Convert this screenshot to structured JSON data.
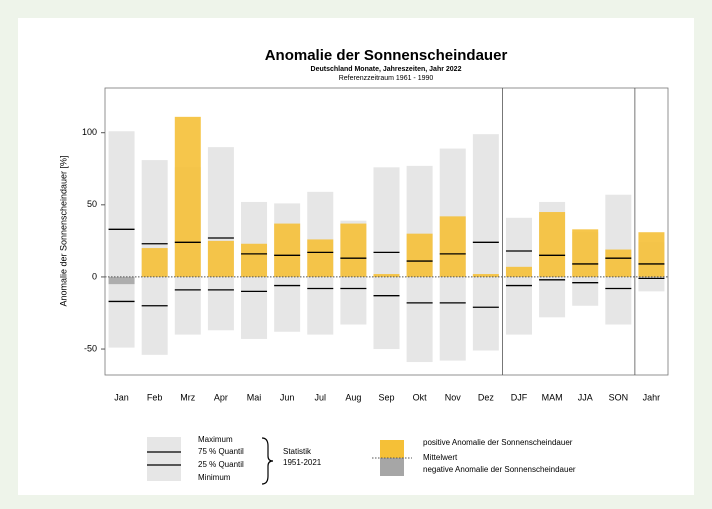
{
  "chart_data": {
    "type": "bar",
    "title": "Anomalie der Sonnenscheindauer",
    "subtitle": "Deutschland Monate, Jahreszeiten, Jahr 2022",
    "subtitle2": "Referenzzeitraum 1961 - 1990",
    "ylabel": "Anomalie der Sonnenscheindauer [%]",
    "categories": [
      "Jan",
      "Feb",
      "Mrz",
      "Apr",
      "Mai",
      "Jun",
      "Jul",
      "Aug",
      "Sep",
      "Okt",
      "Nov",
      "Dez",
      "DJF",
      "MAM",
      "JJA",
      "SON",
      "Jahr"
    ],
    "series": [
      {
        "name": "Maximum",
        "color": "#e6e6e6",
        "values": [
          101,
          81,
          76,
          90,
          52,
          51,
          59,
          39,
          76,
          77,
          89,
          99,
          41,
          52,
          31,
          57,
          24
        ]
      },
      {
        "name": "75 % Quantil",
        "color": "#000000",
        "values": [
          33,
          23,
          24,
          27,
          16,
          15,
          17,
          13,
          17,
          11,
          16,
          24,
          18,
          15,
          9,
          13,
          9
        ]
      },
      {
        "name": "25 % Quantil",
        "color": "#000000",
        "values": [
          -17,
          -20,
          -9,
          -9,
          -10,
          -6,
          -8,
          -8,
          -13,
          -18,
          -18,
          -21,
          -6,
          -2,
          -4,
          -8,
          -1
        ]
      },
      {
        "name": "Minimum",
        "color": "#e6e6e6",
        "values": [
          -49,
          -54,
          -40,
          -37,
          -43,
          -38,
          -40,
          -33,
          -50,
          -59,
          -58,
          -51,
          -40,
          -28,
          -20,
          -33,
          -10
        ]
      }
    ],
    "values": [
      -5,
      20,
      111,
      25,
      23,
      37,
      26,
      37,
      2,
      30,
      42,
      2,
      7,
      45,
      33,
      19,
      31
    ],
    "positive_color": "#f5c037",
    "negative_color": "#a6a6a6",
    "legend": {
      "statistik": "Statistik",
      "period": "1951-2021",
      "positive": "positive Anomalie der Sonnenscheindauer",
      "mean": "Mittelwert",
      "negative": "negative Anomalie der Sonnenscheindauer"
    },
    "ylim": [
      -68,
      131
    ],
    "yticks": [
      -50,
      0,
      50,
      100
    ]
  }
}
